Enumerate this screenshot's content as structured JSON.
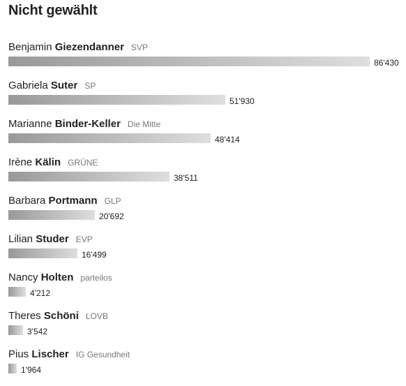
{
  "chart_data": {
    "type": "bar",
    "orientation": "horizontal",
    "title": "Nicht gewählt",
    "categories": [
      "Benjamin Giezendanner",
      "Gabriela Suter",
      "Marianne Binder-Keller",
      "Irène Kälin",
      "Barbara Portmann",
      "Lilian Studer",
      "Nancy Holten",
      "Theres Schöni",
      "Pius Lischer"
    ],
    "values": [
      86430,
      51930,
      48414,
      38511,
      20692,
      16499,
      4212,
      3542,
      1964
    ],
    "xlim": [
      0,
      86430
    ],
    "grid": false,
    "legend": "none",
    "bar_color_start": "#999999",
    "bar_color_end": "#dedede",
    "rows": [
      {
        "first": "Benjamin",
        "last": "Giezendanner",
        "party": "SVP",
        "value": 86430,
        "value_label": "86'430"
      },
      {
        "first": "Gabriela",
        "last": "Suter",
        "party": "SP",
        "value": 51930,
        "value_label": "51'930"
      },
      {
        "first": "Marianne",
        "last": "Binder-Keller",
        "party": "Die Mitte",
        "value": 48414,
        "value_label": "48'414"
      },
      {
        "first": "Irène",
        "last": "Kälin",
        "party": "GRÜNE",
        "value": 38511,
        "value_label": "38'511"
      },
      {
        "first": "Barbara",
        "last": "Portmann",
        "party": "GLP",
        "value": 20692,
        "value_label": "20'692"
      },
      {
        "first": "Lilian",
        "last": "Studer",
        "party": "EVP",
        "value": 16499,
        "value_label": "16'499"
      },
      {
        "first": "Nancy",
        "last": "Holten",
        "party": "parteilos",
        "value": 4212,
        "value_label": "4'212"
      },
      {
        "first": "Theres",
        "last": "Schöni",
        "party": "LOVB",
        "value": 3542,
        "value_label": "3'542"
      },
      {
        "first": "Pius",
        "last": "Lischer",
        "party": "IG Gesundheit",
        "value": 1964,
        "value_label": "1'964"
      }
    ]
  }
}
